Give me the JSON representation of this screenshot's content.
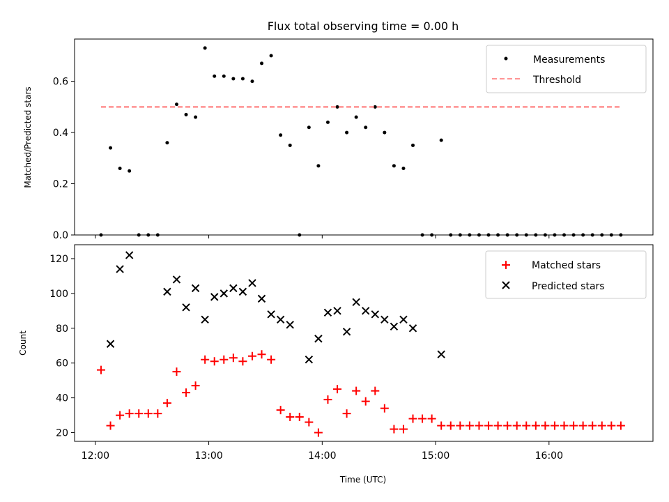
{
  "chart_data": [
    {
      "type": "scatter",
      "title": "Flux total observing time = 0.00 h",
      "xlabel": "",
      "ylabel": "Matched/Predicted stars",
      "ylim": [
        0,
        0.765
      ],
      "yticks": [
        "0.0",
        "0.2",
        "0.4",
        "0.6"
      ],
      "ytick_values": [
        0,
        0.2,
        0.4,
        0.6
      ],
      "legend": {
        "position": "top-right",
        "entries": [
          "Measurements",
          "Threshold"
        ]
      },
      "series": [
        {
          "name": "Measurements",
          "marker": "dot",
          "color": "#000000",
          "x": [
            "12:03",
            "12:08",
            "12:13",
            "12:18",
            "12:23",
            "12:28",
            "12:33",
            "12:38",
            "12:43",
            "12:48",
            "12:53",
            "12:58",
            "13:03",
            "13:08",
            "13:13",
            "13:18",
            "13:23",
            "13:28",
            "13:33",
            "13:38",
            "13:43",
            "13:48",
            "13:53",
            "13:58",
            "14:03",
            "14:08",
            "14:13",
            "14:18",
            "14:23",
            "14:28",
            "14:33",
            "14:38",
            "14:43",
            "14:48",
            "14:53",
            "14:58",
            "15:03",
            "15:08",
            "15:13",
            "15:18",
            "15:23",
            "15:28",
            "15:33",
            "15:38",
            "15:43",
            "15:48",
            "15:53",
            "15:58",
            "16:03",
            "16:08",
            "16:13",
            "16:18",
            "16:23",
            "16:28",
            "16:33",
            "16:38"
          ],
          "y": [
            0.0,
            0.34,
            0.26,
            0.25,
            0.0,
            0.0,
            0.0,
            0.36,
            0.51,
            0.47,
            0.46,
            0.73,
            0.62,
            0.62,
            0.61,
            0.61,
            0.6,
            0.67,
            0.7,
            0.39,
            0.35,
            0.0,
            0.42,
            0.27,
            0.44,
            0.5,
            0.4,
            0.46,
            0.42,
            0.5,
            0.4,
            0.27,
            0.26,
            0.35,
            0.0,
            0.0,
            0.37,
            0.0,
            0.0,
            0.0,
            0.0,
            0.0,
            0.0,
            0.0,
            0.0,
            0.0,
            0.0,
            0.0,
            0.0,
            0.0,
            0.0,
            0.0,
            0.0,
            0.0,
            0.0,
            0.0
          ]
        },
        {
          "name": "Threshold",
          "marker": "dashed-line",
          "color": "#ff7070",
          "x": [
            "12:03",
            "16:38"
          ],
          "y": [
            0.5,
            0.5
          ]
        }
      ]
    },
    {
      "type": "scatter",
      "title": "",
      "xlabel": "Time (UTC)",
      "ylabel": "Count",
      "ylim": [
        15,
        128
      ],
      "yticks": [
        "20",
        "40",
        "60",
        "80",
        "100",
        "120"
      ],
      "ytick_values": [
        20,
        40,
        60,
        80,
        100,
        120
      ],
      "xticks": [
        "12:00",
        "13:00",
        "14:00",
        "15:00",
        "16:00"
      ],
      "xlim": [
        "11:49",
        "16:55"
      ],
      "legend": {
        "position": "top-right",
        "entries": [
          "Matched stars",
          "Predicted stars"
        ]
      },
      "series": [
        {
          "name": "Matched stars",
          "marker": "plus",
          "color": "#ff0000",
          "x": [
            "12:03",
            "12:08",
            "12:13",
            "12:18",
            "12:23",
            "12:28",
            "12:33",
            "12:38",
            "12:43",
            "12:48",
            "12:53",
            "12:58",
            "13:03",
            "13:08",
            "13:13",
            "13:18",
            "13:23",
            "13:28",
            "13:33",
            "13:38",
            "13:43",
            "13:48",
            "13:53",
            "13:58",
            "14:03",
            "14:08",
            "14:13",
            "14:18",
            "14:23",
            "14:28",
            "14:33",
            "14:38",
            "14:43",
            "14:48",
            "14:53",
            "14:58",
            "15:03",
            "15:08",
            "15:13",
            "15:18",
            "15:23",
            "15:28",
            "15:33",
            "15:38",
            "15:43",
            "15:48",
            "15:53",
            "15:58",
            "16:03",
            "16:08",
            "16:13",
            "16:18",
            "16:23",
            "16:28",
            "16:33",
            "16:38"
          ],
          "y": [
            56,
            24,
            30,
            31,
            31,
            31,
            31,
            37,
            55,
            43,
            47,
            62,
            61,
            62,
            63,
            61,
            64,
            65,
            62,
            33,
            29,
            29,
            26,
            20,
            39,
            45,
            31,
            44,
            38,
            44,
            34,
            22,
            22,
            28,
            28,
            28,
            24,
            24,
            24,
            24,
            24,
            24,
            24,
            24,
            24,
            24,
            24,
            24,
            24,
            24,
            24,
            24,
            24,
            24,
            24,
            24
          ]
        },
        {
          "name": "Predicted stars",
          "marker": "x",
          "color": "#000000",
          "x": [
            "12:08",
            "12:13",
            "12:18",
            "12:38",
            "12:43",
            "12:48",
            "12:53",
            "12:58",
            "13:03",
            "13:08",
            "13:13",
            "13:18",
            "13:23",
            "13:28",
            "13:33",
            "13:38",
            "13:43",
            "13:53",
            "13:58",
            "14:03",
            "14:08",
            "14:13",
            "14:18",
            "14:23",
            "14:28",
            "14:33",
            "14:38",
            "14:43",
            "14:48",
            "15:03"
          ],
          "y": [
            71,
            114,
            122,
            101,
            108,
            92,
            103,
            85,
            98,
            100,
            103,
            101,
            106,
            97,
            88,
            85,
            82,
            62,
            74,
            89,
            90,
            78,
            95,
            90,
            88,
            85,
            81,
            85,
            80,
            65
          ]
        }
      ]
    }
  ]
}
